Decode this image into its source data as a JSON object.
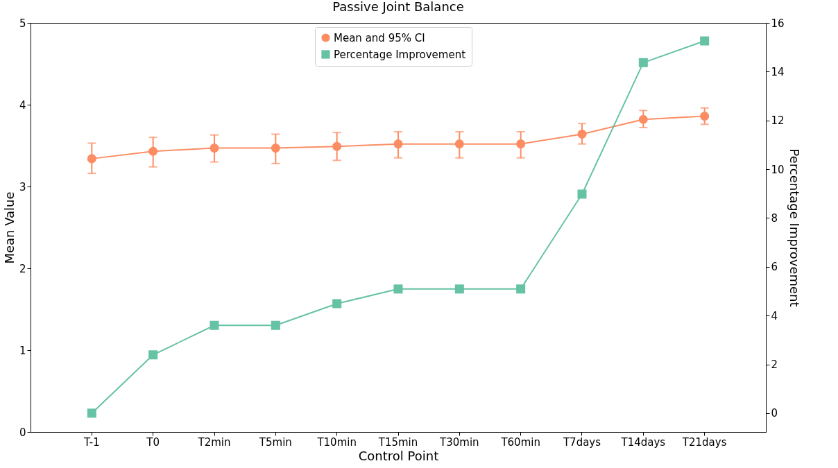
{
  "chart_data": {
    "type": "line",
    "title": "Passive Joint Balance",
    "xlabel": "Control Point",
    "ylabel": "Mean Value",
    "y2label": "Percentage Improvement",
    "categories": [
      "T-1",
      "T0",
      "T2min",
      "T5min",
      "T10min",
      "T15min",
      "T30min",
      "T60min",
      "T7days",
      "T14days",
      "T21days"
    ],
    "series": [
      {
        "name": "Mean and 95% CI",
        "color": "#fc8d62",
        "marker": "circle",
        "values": [
          3.34,
          3.43,
          3.47,
          3.47,
          3.49,
          3.52,
          3.52,
          3.52,
          3.64,
          3.82,
          3.86
        ],
        "errors": [
          [
            3.16,
            3.53
          ],
          [
            3.24,
            3.6
          ],
          [
            3.3,
            3.63
          ],
          [
            3.28,
            3.64
          ],
          [
            3.32,
            3.66
          ],
          [
            3.35,
            3.67
          ],
          [
            3.35,
            3.67
          ],
          [
            3.35,
            3.67
          ],
          [
            3.52,
            3.77
          ],
          [
            3.72,
            3.93
          ],
          [
            3.76,
            3.96
          ]
        ]
      },
      {
        "name": "Percentage Improvement",
        "color": "#66c2a5",
        "marker": "square",
        "axis": "y2",
        "values": [
          0,
          2.39,
          3.6,
          3.6,
          4.49,
          5.09,
          5.09,
          5.09,
          8.98,
          14.37,
          15.26
        ]
      }
    ],
    "ylim": [
      0,
      5
    ],
    "yticks": [
      0,
      1,
      2,
      3,
      4,
      5
    ],
    "y2lim": [
      -0.77,
      16
    ],
    "y2ticks": [
      0,
      2,
      4,
      6,
      8,
      10,
      12,
      14,
      16
    ],
    "legend": "top",
    "grid": false
  }
}
